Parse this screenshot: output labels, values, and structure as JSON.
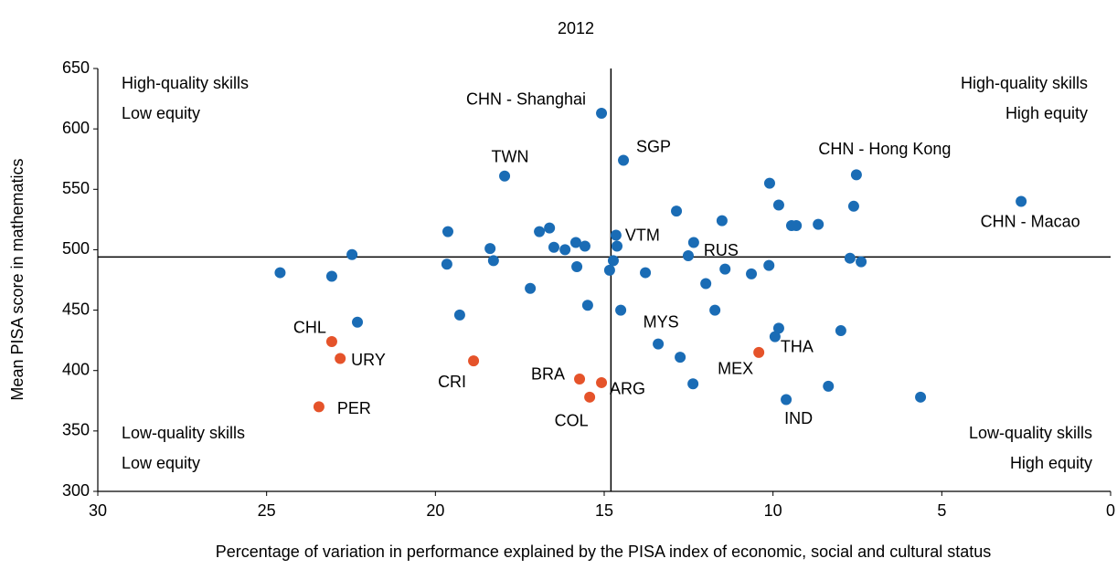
{
  "chart_data": {
    "type": "scatter",
    "title": "2012",
    "x_label": "Percentage of variation in performance explained by the PISA index of economic, social and cultural status",
    "y_label": "Mean PISA score in mathematics",
    "xlim": [
      30,
      0
    ],
    "ylim": [
      300,
      650
    ],
    "xticks": [
      30,
      25,
      20,
      15,
      10,
      5,
      0
    ],
    "yticks": [
      300,
      350,
      400,
      450,
      500,
      550,
      600,
      650
    ],
    "reference_lines": {
      "x": 14.8,
      "y": 494
    },
    "quadrant_labels": [
      {
        "position": "top-left",
        "lines": [
          "High-quality skills",
          "Low equity"
        ]
      },
      {
        "position": "top-right",
        "lines": [
          "High-quality skills",
          "High equity"
        ]
      },
      {
        "position": "bottom-left",
        "lines": [
          "Low-quality skills",
          "Low equity"
        ]
      },
      {
        "position": "bottom-right",
        "lines": [
          "Low-quality skills",
          "High equity"
        ]
      }
    ],
    "series": [
      {
        "color": "#1a6cb5",
        "x": [
          24.6,
          23.07,
          22.47,
          22.31,
          19.63,
          19.66,
          19.28,
          18.38,
          18.28,
          17.95,
          17.19,
          16.92,
          16.62,
          16.49,
          16.16,
          15.84,
          15.81,
          15.57,
          15.49,
          15.08,
          14.84,
          14.65,
          14.62,
          14.73,
          14.51,
          14.43,
          13.78,
          13.4,
          12.86,
          12.75,
          12.51,
          12.37,
          12.35,
          11.51,
          11.42,
          11.99,
          11.72,
          10.64,
          10.1,
          10.12,
          9.83,
          9.83,
          9.94,
          9.61,
          9.45,
          9.31,
          8.66,
          8.36,
          7.99,
          7.53,
          7.61,
          7.72,
          7.39,
          5.63,
          2.65
        ],
        "values": [
          481,
          478,
          496,
          440,
          515,
          488,
          446,
          501,
          491,
          561,
          468,
          515,
          518,
          502,
          500,
          506,
          486,
          503,
          454,
          613,
          483,
          512,
          503,
          491,
          450,
          574,
          481,
          422,
          532,
          411,
          495,
          389,
          506,
          524,
          484,
          472,
          450,
          480,
          555,
          487,
          537,
          435,
          428,
          376,
          520,
          520,
          521,
          387,
          433,
          562,
          536,
          493,
          490,
          378,
          540
        ],
        "labels": [
          null,
          null,
          null,
          null,
          null,
          null,
          null,
          null,
          null,
          "TWN",
          null,
          null,
          null,
          null,
          null,
          null,
          null,
          null,
          null,
          "CHN - Shanghai",
          null,
          "VTM",
          null,
          null,
          null,
          "SGP",
          null,
          "MYS",
          null,
          null,
          null,
          null,
          "RUS",
          null,
          null,
          null,
          null,
          null,
          null,
          null,
          null,
          null,
          "THA",
          "IND",
          null,
          null,
          null,
          null,
          null,
          "CHN - Hong Kong",
          null,
          null,
          null,
          null,
          "CHN - Macao"
        ]
      },
      {
        "color": "#e5532a",
        "x": [
          23.07,
          22.82,
          23.45,
          18.87,
          15.73,
          15.08,
          15.43,
          10.42
        ],
        "values": [
          424,
          410,
          370,
          408,
          393,
          390,
          378,
          415
        ],
        "labels": [
          "CHL",
          "URY",
          "PER",
          "CRI",
          "BRA",
          "ARG",
          "COL",
          "MEX"
        ]
      }
    ]
  }
}
